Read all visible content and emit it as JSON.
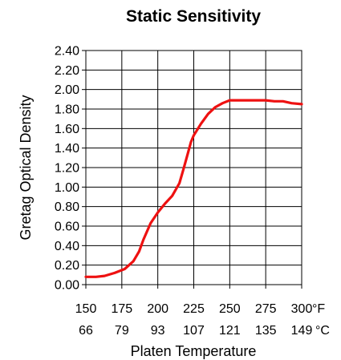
{
  "chart_data": {
    "type": "line",
    "title": "Static Sensitivity",
    "xlabel": "Platen Temperature",
    "ylabel": "Gretag Optical Density",
    "xlim": [
      150,
      300
    ],
    "ylim": [
      0,
      2.4
    ],
    "grid": true,
    "legend": "none",
    "line_color": "#ee1111",
    "x_ticks_f": [
      "150",
      "175",
      "200",
      "225",
      "250",
      "275",
      "300"
    ],
    "x_ticks_c": [
      "66",
      "79",
      "93",
      "107",
      "121",
      "135",
      "149"
    ],
    "x_unit_f": "°F",
    "x_unit_c": "°C",
    "y_ticks": [
      "0.00",
      "0.20",
      "0.40",
      "0.60",
      "0.80",
      "1.00",
      "1.20",
      "1.40",
      "1.60",
      "1.80",
      "2.00",
      "2.20",
      "2.40"
    ],
    "series": [
      {
        "x": [
          150,
          157,
          163,
          170,
          177,
          183,
          187,
          190,
          195,
          200,
          205,
          210,
          215,
          218,
          221,
          223,
          225,
          230,
          235,
          240,
          245,
          250,
          262,
          275,
          281,
          287,
          293,
          300
        ],
        "y": [
          0.08,
          0.08,
          0.09,
          0.12,
          0.16,
          0.24,
          0.34,
          0.46,
          0.63,
          0.74,
          0.83,
          0.91,
          1.04,
          1.19,
          1.35,
          1.46,
          1.53,
          1.65,
          1.75,
          1.82,
          1.86,
          1.89,
          1.89,
          1.89,
          1.88,
          1.88,
          1.86,
          1.85
        ]
      }
    ]
  }
}
